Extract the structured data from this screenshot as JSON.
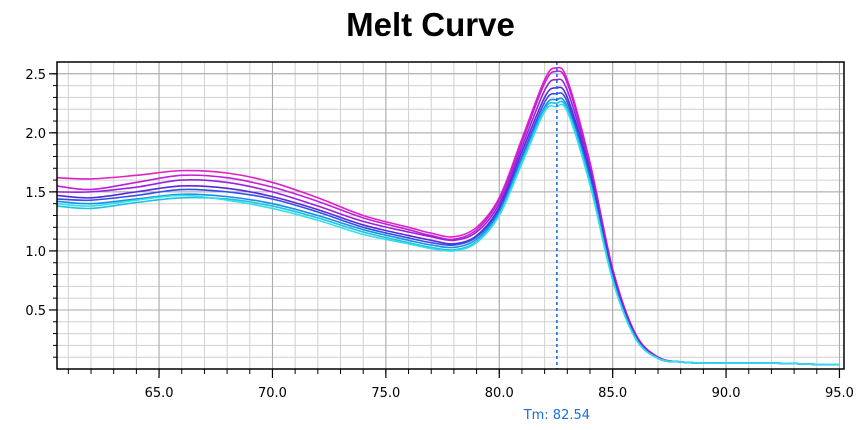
{
  "chart_data": {
    "type": "line",
    "title": "Melt Curve",
    "xlabel": "",
    "ylabel": "",
    "xlim": [
      60.5,
      95.2
    ],
    "ylim": [
      0,
      2.6
    ],
    "x_ticks": [
      {
        "value": 65.0,
        "label": "65.0"
      },
      {
        "value": 70.0,
        "label": "70.0"
      },
      {
        "value": 75.0,
        "label": "75.0"
      },
      {
        "value": 80.0,
        "label": "80.0"
      },
      {
        "value": 85.0,
        "label": "85.0"
      },
      {
        "value": 90.0,
        "label": "90.0"
      },
      {
        "value": 95.0,
        "label": "95.0"
      }
    ],
    "y_ticks": [
      {
        "value": 0.5,
        "label": "0.5"
      },
      {
        "value": 1.0,
        "label": "1.0"
      },
      {
        "value": 1.5,
        "label": "1.5"
      },
      {
        "value": 2.0,
        "label": "2.0"
      },
      {
        "value": 2.5,
        "label": "2.5"
      }
    ],
    "grid": true,
    "x": [
      60.5,
      62,
      64,
      66,
      68,
      70,
      72,
      74,
      76,
      77,
      78,
      79,
      80,
      81,
      82,
      82.5,
      83,
      84,
      85,
      86,
      87,
      88,
      89,
      90,
      92,
      94,
      95
    ],
    "series": [
      {
        "color": "#e020c8",
        "values": [
          1.62,
          1.61,
          1.64,
          1.68,
          1.66,
          1.58,
          1.45,
          1.3,
          1.2,
          1.15,
          1.12,
          1.2,
          1.45,
          1.95,
          2.45,
          2.55,
          2.45,
          1.75,
          0.85,
          0.3,
          0.1,
          0.06,
          0.05,
          0.05,
          0.05,
          0.04,
          0.04
        ]
      },
      {
        "color": "#c020d8",
        "values": [
          1.55,
          1.52,
          1.58,
          1.64,
          1.62,
          1.54,
          1.42,
          1.28,
          1.18,
          1.13,
          1.1,
          1.18,
          1.43,
          1.92,
          2.42,
          2.52,
          2.42,
          1.73,
          0.84,
          0.3,
          0.1,
          0.06,
          0.05,
          0.05,
          0.05,
          0.04,
          0.04
        ]
      },
      {
        "color": "#9a20e0",
        "values": [
          1.5,
          1.5,
          1.54,
          1.6,
          1.58,
          1.5,
          1.38,
          1.25,
          1.16,
          1.12,
          1.09,
          1.16,
          1.4,
          1.88,
          2.36,
          2.45,
          2.36,
          1.7,
          0.82,
          0.29,
          0.1,
          0.06,
          0.05,
          0.05,
          0.05,
          0.04,
          0.04
        ]
      },
      {
        "color": "#5a28d8",
        "values": [
          1.47,
          1.45,
          1.5,
          1.55,
          1.53,
          1.46,
          1.35,
          1.22,
          1.13,
          1.09,
          1.06,
          1.13,
          1.37,
          1.84,
          2.3,
          2.38,
          2.3,
          1.66,
          0.8,
          0.28,
          0.09,
          0.06,
          0.05,
          0.05,
          0.05,
          0.04,
          0.04
        ]
      },
      {
        "color": "#3050e8",
        "values": [
          1.44,
          1.43,
          1.47,
          1.52,
          1.5,
          1.44,
          1.33,
          1.2,
          1.11,
          1.07,
          1.05,
          1.12,
          1.35,
          1.8,
          2.26,
          2.33,
          2.26,
          1.63,
          0.78,
          0.27,
          0.09,
          0.06,
          0.05,
          0.05,
          0.05,
          0.04,
          0.04
        ]
      },
      {
        "color": "#1890e8",
        "values": [
          1.42,
          1.4,
          1.44,
          1.48,
          1.46,
          1.4,
          1.3,
          1.18,
          1.09,
          1.05,
          1.03,
          1.1,
          1.33,
          1.78,
          2.22,
          2.28,
          2.22,
          1.6,
          0.77,
          0.27,
          0.09,
          0.06,
          0.05,
          0.05,
          0.05,
          0.04,
          0.04
        ]
      },
      {
        "color": "#20c0e0",
        "values": [
          1.38,
          1.36,
          1.41,
          1.45,
          1.44,
          1.38,
          1.28,
          1.16,
          1.07,
          1.03,
          1.01,
          1.08,
          1.31,
          1.76,
          2.2,
          2.25,
          2.2,
          1.58,
          0.76,
          0.26,
          0.09,
          0.06,
          0.05,
          0.05,
          0.05,
          0.04,
          0.04
        ]
      },
      {
        "color": "#30e0e8",
        "values": [
          1.4,
          1.38,
          1.43,
          1.47,
          1.43,
          1.36,
          1.26,
          1.14,
          1.06,
          1.02,
          1.0,
          1.07,
          1.3,
          1.74,
          2.18,
          2.22,
          2.18,
          1.56,
          0.75,
          0.26,
          0.09,
          0.06,
          0.05,
          0.05,
          0.05,
          0.04,
          0.04
        ]
      }
    ],
    "tm": {
      "value": 82.54,
      "label": "Tm: 82.54",
      "color": "#1a6fe0"
    }
  }
}
